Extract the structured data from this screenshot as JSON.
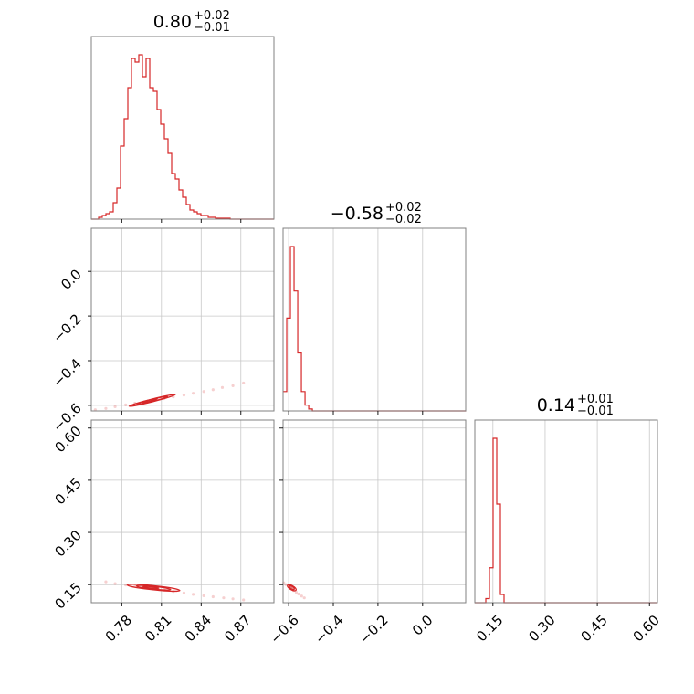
{
  "chart_data": {
    "type": "corner",
    "params": [
      "p0",
      "p1",
      "p2"
    ],
    "color": "#d62728",
    "grid": true,
    "titles": [
      {
        "median": "0.80",
        "plus": "+0.02",
        "minus": "−0.01"
      },
      {
        "median": "−0.58",
        "plus": "+0.02",
        "minus": "−0.02"
      },
      {
        "median": "0.14",
        "plus": "+0.01",
        "minus": "−0.01"
      }
    ],
    "ranges": [
      [
        0.757,
        0.895
      ],
      [
        -0.625,
        0.193
      ],
      [
        0.098,
        0.623
      ]
    ],
    "ticks": {
      "p0": {
        "values": [
          0.78,
          0.81,
          0.84,
          0.87
        ],
        "labels": [
          "0.78",
          "0.81",
          "0.84",
          "0.87"
        ]
      },
      "p1": {
        "values": [
          -0.6,
          -0.4,
          -0.2,
          0.0
        ],
        "labels": [
          "−0.6",
          "−0.4",
          "−0.2",
          "0.0"
        ]
      },
      "p2": {
        "values": [
          0.15,
          0.3,
          0.45,
          0.6
        ],
        "labels": [
          "0.15",
          "0.30",
          "0.45",
          "0.60"
        ]
      }
    },
    "histograms": [
      {
        "param": "p0",
        "x_start": 0.757,
        "bin_width": 0.00276,
        "counts": [
          0,
          0,
          0.01,
          0.02,
          0.03,
          0.04,
          0.09,
          0.17,
          0.4,
          0.55,
          0.72,
          0.88,
          0.86,
          0.9,
          0.78,
          0.88,
          0.72,
          0.7,
          0.6,
          0.52,
          0.44,
          0.36,
          0.25,
          0.22,
          0.16,
          0.12,
          0.08,
          0.05,
          0.04,
          0.03,
          0.02,
          0.02,
          0.01,
          0.01,
          0.005,
          0.005,
          0.005,
          0.005,
          0,
          0,
          0,
          0,
          0,
          0,
          0,
          0,
          0,
          0,
          0,
          0
        ]
      },
      {
        "param": "p1",
        "x_start": -0.625,
        "bin_width": 0.0164,
        "counts": [
          0.1,
          0.48,
          0.85,
          0.62,
          0.3,
          0.1,
          0.03,
          0.01,
          0,
          0,
          0,
          0,
          0,
          0,
          0,
          0,
          0,
          0,
          0,
          0,
          0,
          0,
          0,
          0,
          0,
          0,
          0,
          0,
          0,
          0,
          0,
          0,
          0,
          0,
          0,
          0,
          0,
          0,
          0,
          0,
          0,
          0,
          0,
          0,
          0,
          0,
          0,
          0,
          0,
          0
        ]
      },
      {
        "param": "p2",
        "x_start": 0.098,
        "bin_width": 0.0105,
        "counts": [
          0,
          0,
          0,
          0.02,
          0.17,
          0.8,
          0.48,
          0.04,
          0,
          0,
          0,
          0,
          0,
          0,
          0,
          0,
          0,
          0,
          0,
          0,
          0,
          0,
          0,
          0,
          0,
          0,
          0,
          0,
          0,
          0,
          0,
          0,
          0,
          0,
          0,
          0,
          0,
          0,
          0,
          0,
          0,
          0,
          0,
          0,
          0,
          0,
          0,
          0,
          0,
          0
        ]
      }
    ],
    "scatter": [
      {
        "x": "p0",
        "y": "p1",
        "points": [
          [
            0.76,
            -0.62
          ],
          [
            0.768,
            -0.614
          ],
          [
            0.775,
            -0.606
          ],
          [
            0.783,
            -0.598
          ],
          [
            0.79,
            -0.59
          ],
          [
            0.797,
            -0.584
          ],
          [
            0.804,
            -0.576
          ],
          [
            0.812,
            -0.57
          ],
          [
            0.819,
            -0.562
          ],
          [
            0.827,
            -0.554
          ],
          [
            0.834,
            -0.546
          ],
          [
            0.842,
            -0.538
          ],
          [
            0.849,
            -0.53
          ],
          [
            0.856,
            -0.52
          ],
          [
            0.864,
            -0.512
          ],
          [
            0.872,
            -0.5
          ]
        ]
      },
      {
        "x": "p0",
        "y": "p2",
        "points": [
          [
            0.768,
            0.158
          ],
          [
            0.775,
            0.153
          ],
          [
            0.783,
            0.149
          ],
          [
            0.79,
            0.145
          ],
          [
            0.797,
            0.141
          ],
          [
            0.804,
            0.138
          ],
          [
            0.812,
            0.134
          ],
          [
            0.819,
            0.13
          ],
          [
            0.827,
            0.126
          ],
          [
            0.834,
            0.122
          ],
          [
            0.842,
            0.118
          ],
          [
            0.849,
            0.115
          ],
          [
            0.857,
            0.112
          ],
          [
            0.864,
            0.109
          ],
          [
            0.872,
            0.106
          ]
        ]
      },
      {
        "x": "p1",
        "y": "p2",
        "points": [
          [
            -0.622,
            0.155
          ],
          [
            -0.612,
            0.15
          ],
          [
            -0.6,
            0.144
          ],
          [
            -0.59,
            0.139
          ],
          [
            -0.578,
            0.133
          ],
          [
            -0.566,
            0.128
          ],
          [
            -0.555,
            0.123
          ],
          [
            -0.542,
            0.117
          ],
          [
            -0.53,
            0.112
          ]
        ]
      }
    ],
    "contours": [
      {
        "x": "p0",
        "y": "p1",
        "levels": [
          {
            "cx": 0.803,
            "cy": -0.578,
            "rx": 0.018,
            "ry": 0.006,
            "angle_deg": -14
          },
          {
            "cx": 0.803,
            "cy": -0.578,
            "rx": 0.012,
            "ry": 0.0045,
            "angle_deg": -14
          },
          {
            "cx": 0.801,
            "cy": -0.579,
            "rx": 0.006,
            "ry": 0.003,
            "angle_deg": -14
          }
        ]
      },
      {
        "x": "p0",
        "y": "p2",
        "levels": [
          {
            "cx": 0.804,
            "cy": 0.141,
            "rx": 0.02,
            "ry": 0.006,
            "angle_deg": 6
          },
          {
            "cx": 0.804,
            "cy": 0.141,
            "rx": 0.013,
            "ry": 0.004,
            "angle_deg": 6
          },
          {
            "cx": 0.802,
            "cy": 0.142,
            "rx": 0.006,
            "ry": 0.002,
            "angle_deg": 6
          }
        ]
      },
      {
        "x": "p1",
        "y": "p2",
        "levels": [
          {
            "cx": -0.586,
            "cy": 0.141,
            "rx": 0.022,
            "ry": 0.006,
            "angle_deg": 30
          },
          {
            "cx": -0.586,
            "cy": 0.141,
            "rx": 0.013,
            "ry": 0.004,
            "angle_deg": 30
          }
        ]
      }
    ]
  }
}
